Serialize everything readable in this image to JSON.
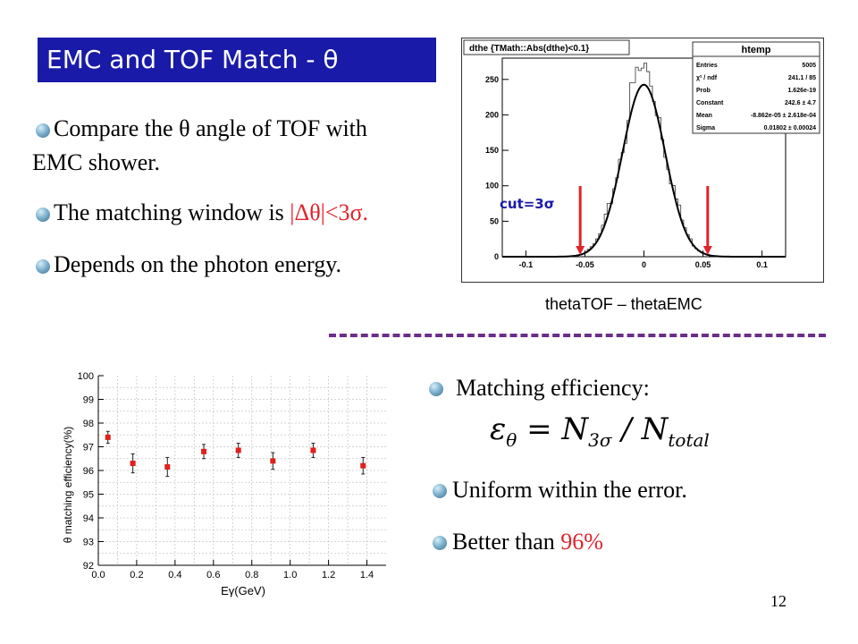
{
  "slide": {
    "title": "EMC and TOF Match - θ",
    "bullets_top": [
      {
        "line1": "Compare the θ angle of TOF with",
        "line2": "EMC shower."
      },
      {
        "prefix": "The matching window is ",
        "highlight": "|Δθ|<3σ."
      },
      {
        "text": "Depends on the photon energy."
      }
    ],
    "bullets_bottom": [
      {
        "text": "Matching efficiency:"
      },
      {
        "text": "Uniform within the error."
      },
      {
        "prefix": "Better than ",
        "highlight": "96%"
      }
    ],
    "formula": {
      "lhs": "ε",
      "lhs_sub": "θ",
      "eq": " = N",
      "num_sub": "3σ",
      "div": " / N",
      "den_sub": "total"
    },
    "page_number": "12",
    "hist_caption": "thetaTOF – thetaEMC",
    "colors": {
      "title_bg": "#1a1aa8",
      "highlight": "#e0242b",
      "divider": "#6b2d8c"
    }
  },
  "chart_data": [
    {
      "type": "histogram",
      "title": "dthe {TMath::Abs(dthe)<0.1}",
      "xlim": [
        -0.12,
        0.12
      ],
      "ylim": [
        0,
        280
      ],
      "xticks": [
        "-0.1",
        "-0.05",
        "0",
        "0.05",
        "0.1"
      ],
      "yticks": [
        "0",
        "50",
        "100",
        "150",
        "200",
        "250"
      ],
      "fit": {
        "type": "gauss",
        "constant": 242.6,
        "mean": -8.862e-05,
        "sigma": 0.01802
      },
      "annotation": "cut=3σ",
      "cut_lines": [
        -0.054,
        0.054
      ],
      "stats": {
        "name": "htemp",
        "rows": [
          {
            "label": "Entries",
            "value": "5005"
          },
          {
            "label": "χ² / ndf",
            "value": "241.1 / 85"
          },
          {
            "label": "Prob",
            "value": "1.626e-19"
          },
          {
            "label": "Constant",
            "value": "242.6 ± 4.7"
          },
          {
            "label": "Mean",
            "value": "-8.862e-05 ± 2.618e-04"
          },
          {
            "label": "Sigma",
            "value": "0.01802 ± 0.00024"
          }
        ]
      }
    },
    {
      "type": "scatter",
      "xlabel": "Eγ(GeV)",
      "ylabel": "θ matching efficiency(%)",
      "xlim": [
        0,
        1.5
      ],
      "ylim": [
        92,
        100
      ],
      "xticks": [
        "0.0",
        "0.2",
        "0.4",
        "0.6",
        "0.8",
        "1.0",
        "1.2",
        "1.4"
      ],
      "yticks": [
        "92",
        "93",
        "94",
        "95",
        "96",
        "97",
        "98",
        "99",
        "100"
      ],
      "points": [
        {
          "x": 0.05,
          "y": 97.4,
          "err": 0.25
        },
        {
          "x": 0.18,
          "y": 96.3,
          "err": 0.4
        },
        {
          "x": 0.36,
          "y": 96.15,
          "err": 0.4
        },
        {
          "x": 0.55,
          "y": 96.8,
          "err": 0.3
        },
        {
          "x": 0.73,
          "y": 96.85,
          "err": 0.3
        },
        {
          "x": 0.91,
          "y": 96.4,
          "err": 0.35
        },
        {
          "x": 1.12,
          "y": 96.85,
          "err": 0.3
        },
        {
          "x": 1.38,
          "y": 96.2,
          "err": 0.35
        }
      ]
    }
  ]
}
